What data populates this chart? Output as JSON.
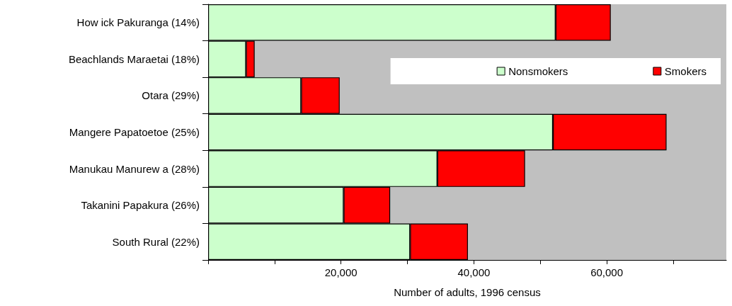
{
  "chart_data": {
    "type": "bar",
    "orientation": "horizontal",
    "stacked": true,
    "categories": [
      "How ick Pakuranga (14%)",
      "Beachlands Maraetai (18%)",
      "Otara (29%)",
      "Mangere Papatoetoe (25%)",
      "Manukau Manurew a (28%)",
      "Takanini Papakura (26%)",
      "South Rural (22%)"
    ],
    "series": [
      {
        "name": "Nonsmokers",
        "color": "#ccffcc",
        "values": [
          52300,
          5700,
          14000,
          51900,
          34500,
          20400,
          30400
        ]
      },
      {
        "name": "Smokers",
        "color": "#ff0000",
        "values": [
          8300,
          1300,
          5800,
          17100,
          13200,
          7000,
          8700
        ]
      }
    ],
    "xlabel": "Number of adults, 1996 census",
    "xlim": [
      0,
      78000
    ],
    "xticks": [
      {
        "value": 0,
        "label": null
      },
      {
        "value": 10000,
        "label": null
      },
      {
        "value": 20000,
        "label": "20,000"
      },
      {
        "value": 30000,
        "label": null
      },
      {
        "value": 40000,
        "label": "40,000"
      },
      {
        "value": 50000,
        "label": null
      },
      {
        "value": 60000,
        "label": "60,000"
      },
      {
        "value": 70000,
        "label": null
      }
    ],
    "legend": "top right",
    "grid": false
  }
}
